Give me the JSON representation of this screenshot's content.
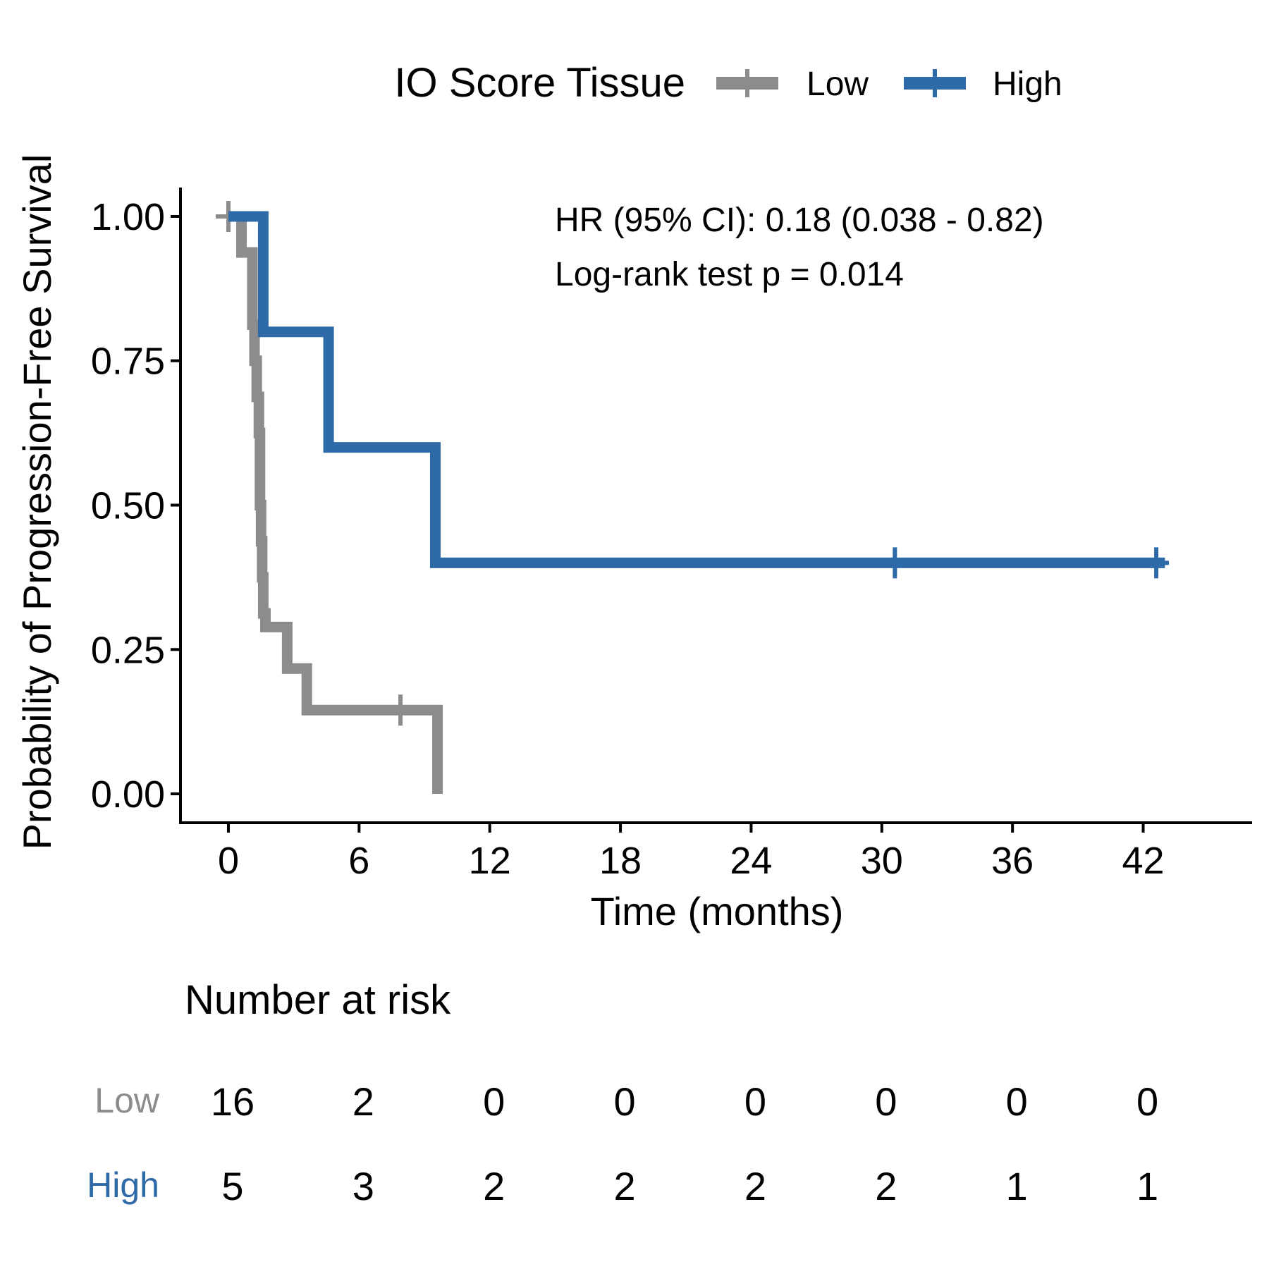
{
  "chart_data": {
    "type": "line",
    "subtype": "kaplan-meier",
    "xlabel": "Time (months)",
    "ylabel": "Probability of Progression-Free Survival",
    "xlim": [
      -2.2,
      47
    ],
    "ylim": [
      -0.05,
      1.05
    ],
    "x_ticks": [
      0,
      6,
      12,
      18,
      24,
      30,
      36,
      42
    ],
    "y_ticks": [
      0,
      0.25,
      0.5,
      0.75,
      1.0
    ],
    "y_tick_labels": [
      "0.00",
      "0.25",
      "0.50",
      "0.75",
      "1.00"
    ],
    "grid": false,
    "legend": {
      "title": "IO Score Tissue",
      "position": "top",
      "entries": [
        "Low",
        "High"
      ]
    },
    "annotations": [
      "HR (95% CI): 0.18 (0.038 - 0.82)",
      "Log-rank test p = 0.014"
    ],
    "series": [
      {
        "name": "Low",
        "color": "#8c8c8c",
        "steps": [
          [
            0,
            1.0
          ],
          [
            0.6,
            0.9375
          ],
          [
            1.1,
            0.8125
          ],
          [
            1.2,
            0.75
          ],
          [
            1.3,
            0.6875
          ],
          [
            1.4,
            0.625
          ],
          [
            1.45,
            0.5
          ],
          [
            1.5,
            0.4375
          ],
          [
            1.55,
            0.375
          ],
          [
            1.6,
            0.3125
          ],
          [
            1.7,
            0.289
          ],
          [
            2.7,
            0.217
          ],
          [
            3.6,
            0.145
          ],
          [
            9.6,
            0.0
          ]
        ],
        "end_x": 9.6,
        "censored": [
          [
            0,
            1.0
          ],
          [
            7.9,
            0.145
          ]
        ]
      },
      {
        "name": "High",
        "color": "#2e6aa8",
        "steps": [
          [
            0,
            1.0
          ],
          [
            1.6,
            0.8
          ],
          [
            4.6,
            0.6
          ],
          [
            9.5,
            0.4
          ]
        ],
        "end_x": 43.0,
        "censored": [
          [
            30.6,
            0.4
          ],
          [
            42.6,
            0.4
          ]
        ]
      }
    ],
    "risk_table": {
      "title": "Number at risk",
      "times": [
        0,
        6,
        12,
        18,
        24,
        30,
        36,
        42
      ],
      "rows": [
        {
          "group": "Low",
          "color": "#8c8c8c",
          "counts": [
            16,
            2,
            0,
            0,
            0,
            0,
            0,
            0
          ]
        },
        {
          "group": "High",
          "color": "#2e6aa8",
          "counts": [
            5,
            3,
            2,
            2,
            2,
            2,
            1,
            1
          ]
        }
      ]
    }
  }
}
